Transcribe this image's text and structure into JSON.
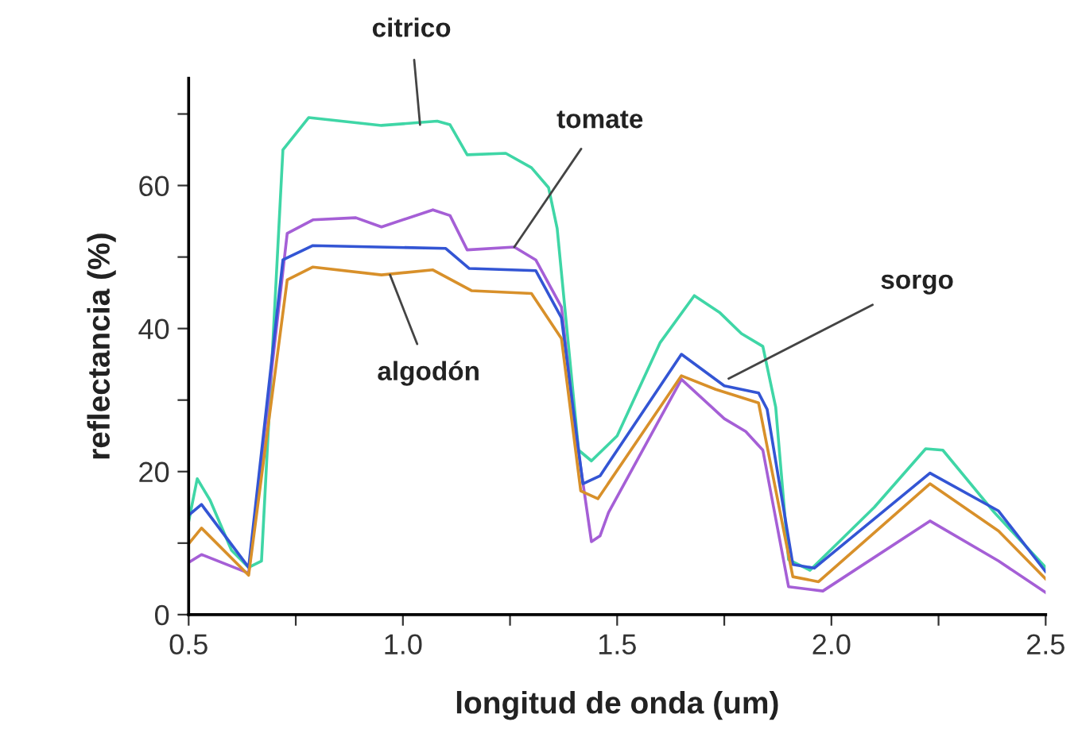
{
  "chart_data": {
    "type": "line",
    "xlabel": "longitud de onda (um)",
    "ylabel": "reflectancia (%)",
    "xlim": [
      0.5,
      2.5
    ],
    "ylim": [
      0,
      75
    ],
    "xticks": [
      0.5,
      {
        "value": 0.75,
        "label": null
      },
      {
        "value": 1.0,
        "label": "1.0"
      },
      {
        "value": 1.25,
        "label": null
      },
      1.5,
      {
        "value": 1.75,
        "label": null
      },
      {
        "value": 2.0,
        "label": "2.0"
      },
      {
        "value": 2.25,
        "label": null
      },
      2.5
    ],
    "yticks": [
      0,
      {
        "value": 10,
        "label": null
      },
      20,
      {
        "value": 30,
        "label": null
      },
      40,
      {
        "value": 50,
        "label": null
      },
      60,
      {
        "value": 70,
        "label": null
      }
    ],
    "grid": false,
    "legend": false,
    "marker": "none",
    "line_style": "solid",
    "series": [
      {
        "color": "#3fd6a6",
        "x": [
          0.5,
          0.52,
          0.55,
          0.6,
          0.64,
          0.67,
          0.72,
          0.78,
          0.95,
          1.08,
          1.11,
          1.15,
          1.24,
          1.3,
          1.34,
          1.36,
          1.41,
          1.44,
          1.5,
          1.6,
          1.68,
          1.74,
          1.79,
          1.84,
          1.87,
          1.9,
          1.95,
          2.1,
          2.22,
          2.26,
          2.38,
          2.5
        ],
        "values": [
          13,
          19,
          16,
          9,
          6.6,
          7.5,
          65,
          69.5,
          68.4,
          69,
          68.5,
          64.3,
          64.5,
          62.5,
          59.7,
          54,
          23,
          21.5,
          25,
          38,
          44.6,
          42.2,
          39.3,
          37.5,
          29,
          7.7,
          6.2,
          15,
          23.2,
          23,
          14.3,
          6.6
        ]
      },
      {
        "color": "#a55fd6",
        "x": [
          0.5,
          0.53,
          0.64,
          0.73,
          0.79,
          0.89,
          0.95,
          1.07,
          1.11,
          1.15,
          1.26,
          1.31,
          1.37,
          1.4,
          1.44,
          1.46,
          1.48,
          1.65,
          1.75,
          1.8,
          1.84,
          1.9,
          1.98,
          2.23,
          2.39,
          2.5
        ],
        "values": [
          7.3,
          8.4,
          5.8,
          53.3,
          55.2,
          55.5,
          54.2,
          56.6,
          55.8,
          51,
          51.4,
          49.6,
          43,
          26.8,
          10.2,
          11,
          14.3,
          32.9,
          27.4,
          25.6,
          23,
          3.9,
          3.3,
          13.1,
          7.5,
          3.1
        ]
      },
      {
        "color": "#3355d4",
        "x": [
          0.5,
          0.53,
          0.64,
          0.72,
          0.79,
          1.1,
          1.155,
          1.31,
          1.37,
          1.42,
          1.46,
          1.65,
          1.75,
          1.83,
          1.85,
          1.91,
          1.96,
          2.23,
          2.39,
          2.5
        ],
        "values": [
          13.9,
          15.4,
          6.6,
          49.6,
          51.6,
          51.2,
          48.4,
          48.1,
          41.5,
          18.3,
          19.4,
          36.4,
          32,
          31,
          28.7,
          7,
          6.5,
          19.8,
          14.5,
          6
        ]
      },
      {
        "color": "#d8902a",
        "x": [
          0.5,
          0.53,
          0.64,
          0.73,
          0.79,
          0.95,
          1.07,
          1.16,
          1.3,
          1.37,
          1.415,
          1.455,
          1.65,
          1.73,
          1.83,
          1.91,
          1.97,
          2.23,
          2.39,
          2.5
        ],
        "values": [
          9.9,
          12.1,
          5.5,
          46.8,
          48.6,
          47.5,
          48.2,
          45.3,
          44.9,
          38.6,
          17.3,
          16.2,
          33.4,
          31.5,
          29.6,
          5.3,
          4.6,
          18.3,
          11.7,
          5
        ]
      }
    ],
    "annotations": [
      {
        "text": "citrico",
        "x": 1.04,
        "y": 68.5
      },
      {
        "text": "tomate",
        "x": 1.26,
        "y": 51.4
      },
      {
        "text": "sorgo",
        "x": 1.76,
        "y": 33
      },
      {
        "text": "algodón",
        "x": 0.97,
        "y": 47.5
      }
    ]
  }
}
